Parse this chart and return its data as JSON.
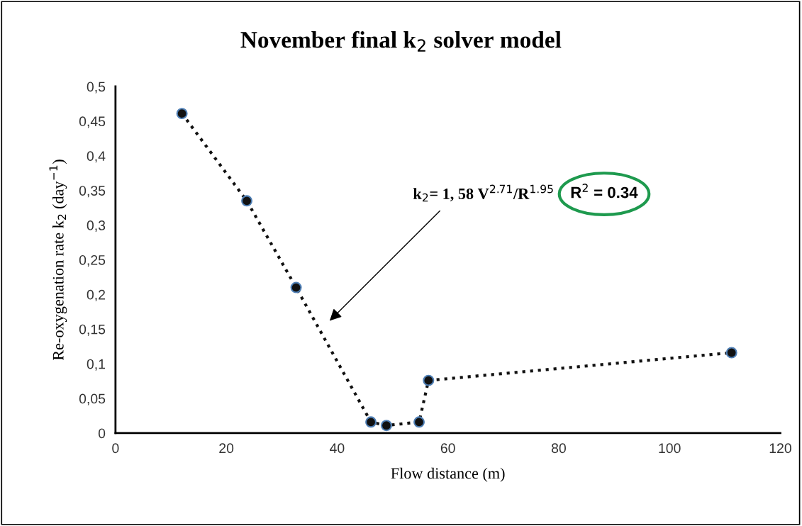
{
  "chart_data": {
    "type": "line",
    "title": "November final k$_{2}$ solver model",
    "xlabel": "Flow distance (m)",
    "ylabel": "Re-oxygenation rate k$_{2}$ (day$^{−1}$)",
    "x": [
      12,
      23.7,
      32.6,
      46.1,
      48.9,
      54.8,
      56.5,
      111.2
    ],
    "series": [
      {
        "color": "#111111",
        "values": [
          0.461,
          0.335,
          0.21,
          0.016,
          0.011,
          0.016,
          0.076,
          0.116
        ]
      }
    ],
    "marker": "circle",
    "line_style": "dotted",
    "xlim": [
      0,
      120
    ],
    "xticks": [
      0,
      20,
      40,
      60,
      80,
      100,
      120
    ],
    "ylim": [
      0,
      0.5
    ],
    "yticks": [
      0,
      {
        "value": 0.05,
        "label": "0,05"
      },
      {
        "value": 0.1,
        "label": "0,1"
      },
      {
        "value": 0.15,
        "label": "0,15"
      },
      {
        "value": 0.2,
        "label": "0,2"
      },
      {
        "value": 0.25,
        "label": "0,25"
      },
      {
        "value": 0.3,
        "label": "0,3"
      },
      {
        "value": 0.35,
        "label": "0,35"
      },
      {
        "value": 0.4,
        "label": "0,4"
      },
      {
        "value": 0.45,
        "label": "0,45"
      },
      {
        "value": 0.5,
        "label": "0,5"
      }
    ],
    "grid": false,
    "legend": false,
    "annotations": [
      "k$_{2}$= 1, 58 V$^{2.71}$/R$^{1.95}$",
      "R$^{2}$ = 0.34"
    ]
  }
}
